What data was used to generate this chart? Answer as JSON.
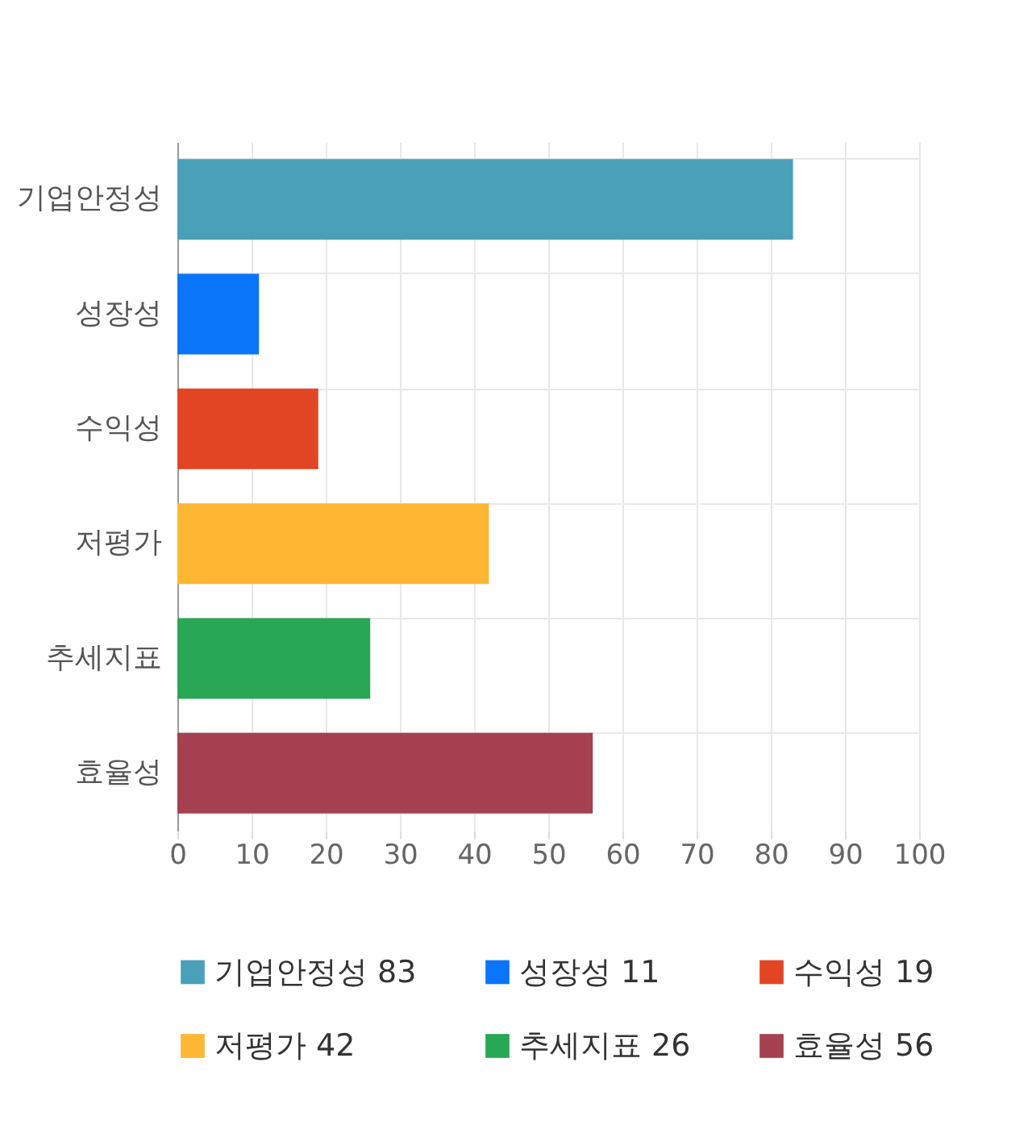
{
  "chart_data": {
    "type": "bar",
    "orientation": "horizontal",
    "categories": [
      "기업안정성",
      "성장성",
      "수익성",
      "저평가",
      "추세지표",
      "효율성"
    ],
    "series": [
      {
        "name": "기업안정성 83",
        "color": "#4aa0b9",
        "values": [
          83,
          null,
          null,
          null,
          null,
          null
        ]
      },
      {
        "name": "성장성 11",
        "color": "#0a75f9",
        "values": [
          null,
          11,
          null,
          null,
          null,
          null
        ]
      },
      {
        "name": "수익성 19",
        "color": "#e24524",
        "values": [
          null,
          null,
          19,
          null,
          null,
          null
        ]
      },
      {
        "name": "저평가 42",
        "color": "#fdb733",
        "values": [
          null,
          null,
          null,
          42,
          null,
          null
        ]
      },
      {
        "name": "추세지표 26",
        "color": "#28a755",
        "values": [
          null,
          null,
          null,
          null,
          26,
          null
        ]
      },
      {
        "name": "효율성 56",
        "color": "#a54150",
        "values": [
          null,
          null,
          null,
          null,
          null,
          56
        ]
      }
    ],
    "xlim": [
      0,
      100
    ],
    "xticks": [
      0,
      10,
      20,
      30,
      40,
      50,
      60,
      70,
      80,
      90,
      100
    ],
    "grid": true,
    "legend": "bottom"
  }
}
